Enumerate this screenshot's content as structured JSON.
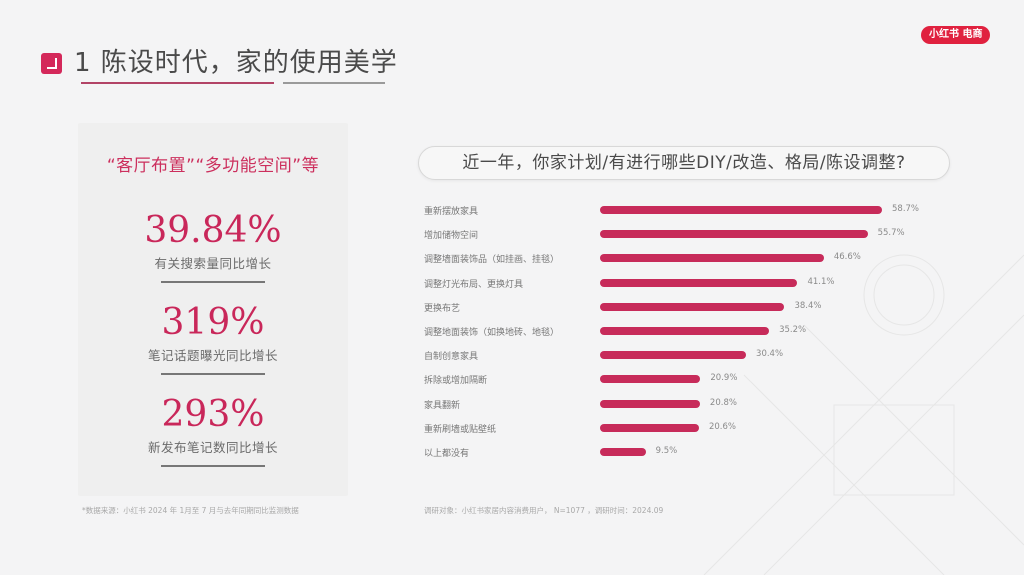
{
  "header": {
    "title": "1 陈设时代，家的使用美学",
    "brand_badge": "小红书 电商",
    "accent_color": "#d4285a"
  },
  "left_panel": {
    "heading": "“客厅布置”“多功能空间”等",
    "stats": [
      {
        "value": "39.84%",
        "label": "有关搜索量同比增长"
      },
      {
        "value": "319%",
        "label": "笔记话题曝光同比增长"
      },
      {
        "value": "293%",
        "label": "新发布笔记数同比增长"
      }
    ],
    "source": "*数据来源：小红书 2024 年 1月至 7 月与去年同期同比监测数据"
  },
  "right_panel": {
    "question": "近一年，你家计划/有进行哪些DIY/改造、格局/陈设调整?",
    "source": "调研对象：小红书家居内容消费用户， N=1077 ，调研时间：2024.09"
  },
  "chart_data": {
    "type": "bar",
    "orientation": "horizontal",
    "title": "近一年，你家计划/有进行哪些DIY/改造、格局/陈设调整?",
    "xlabel": "",
    "ylabel": "",
    "unit": "%",
    "bar_color": "#c72b5a",
    "categories": [
      "重新摆放家具",
      "增加储物空间",
      "调整墙面装饰品（如挂画、挂毯）",
      "调整灯光布局、更换灯具",
      "更换布艺",
      "调整地面装饰（如换地砖、地毯）",
      "自制创意家具",
      "拆除或增加隔断",
      "家具翻新",
      "重新刷墙或贴壁纸",
      "以上都没有"
    ],
    "values": [
      58.7,
      55.7,
      46.6,
      41.1,
      38.4,
      35.2,
      30.4,
      20.9,
      20.8,
      20.6,
      9.5
    ],
    "labels": [
      "58.7%",
      "55.7%",
      "46.6%",
      "41.1%",
      "38.4%",
      "35.2%",
      "30.4%",
      "20.9%",
      "20.8%",
      "20.6%",
      "9.5%"
    ],
    "grid": false,
    "legend": null
  }
}
